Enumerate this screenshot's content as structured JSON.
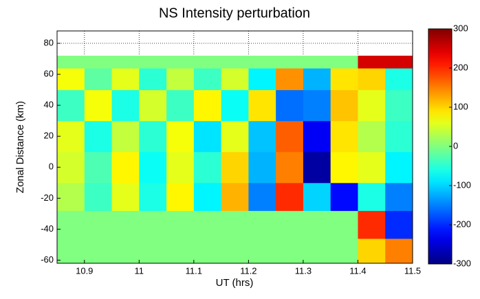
{
  "chart_data": {
    "type": "heatmap",
    "title": "NS Intensity perturbation",
    "x_label": "UT (hrs)",
    "y_label": "Zonal Distance (km)",
    "xlim": [
      10.85,
      11.5
    ],
    "ylim": [
      -62,
      88
    ],
    "xticks": [
      10.9,
      11,
      11.1,
      11.2,
      11.3,
      11.4,
      11.5
    ],
    "yticks": [
      -60,
      -40,
      -20,
      0,
      20,
      40,
      60,
      80
    ],
    "grid": true,
    "x_edges": [
      10.85,
      10.9,
      10.95,
      11,
      11.05,
      11.1,
      11.15,
      11.2,
      11.25,
      11.3,
      11.35,
      11.4,
      11.45,
      11.5
    ],
    "y_edges": [
      -62,
      -46,
      -28,
      -10,
      10,
      30,
      50,
      64,
      72
    ],
    "z": [
      [
        0,
        0,
        0,
        0,
        0,
        0,
        0,
        0,
        0,
        0,
        0,
        100,
        150
      ],
      [
        0,
        0,
        0,
        0,
        0,
        0,
        0,
        0,
        0,
        0,
        0,
        200,
        -200
      ],
      [
        30,
        -40,
        60,
        -60,
        80,
        -80,
        120,
        -150,
        200,
        -100,
        -220,
        -60,
        -150
      ],
      [
        50,
        -30,
        80,
        -70,
        60,
        -50,
        100,
        -120,
        150,
        -280,
        80,
        60,
        -80
      ],
      [
        60,
        -60,
        40,
        -50,
        70,
        -90,
        60,
        -110,
        170,
        -230,
        90,
        30,
        -50
      ],
      [
        -40,
        70,
        -60,
        50,
        -40,
        80,
        -70,
        90,
        -160,
        -150,
        110,
        60,
        -40
      ],
      [
        70,
        -20,
        60,
        -50,
        40,
        -40,
        50,
        -80,
        140,
        -120,
        90,
        100,
        -60
      ],
      [
        0,
        0,
        0,
        0,
        0,
        0,
        0,
        0,
        0,
        0,
        0,
        250,
        250
      ]
    ],
    "clim": [
      -300,
      300
    ],
    "cticks": [
      -300,
      -200,
      -100,
      0,
      100,
      200,
      300
    ]
  }
}
